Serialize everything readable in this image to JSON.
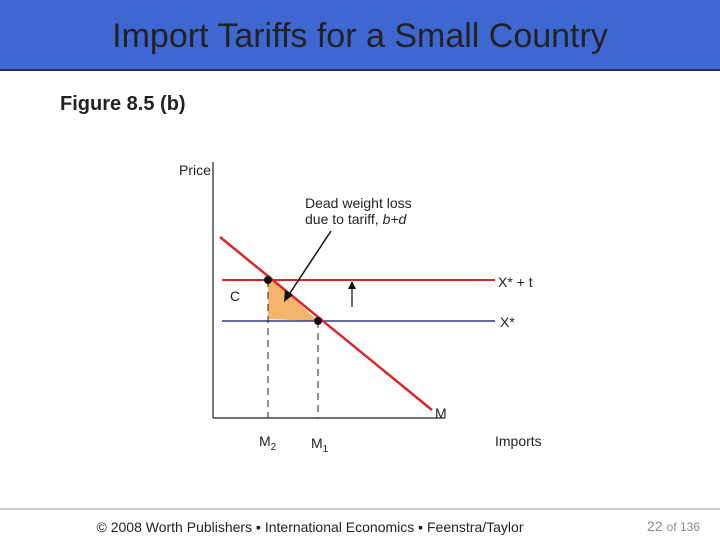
{
  "header": {
    "title": "Import Tariffs for a Small Country"
  },
  "figure": {
    "label": "Figure 8.5 (b)"
  },
  "diagram": {
    "y_axis_label": "Price",
    "x_axis_label": "Imports",
    "annotation": {
      "line1": "Dead weight loss",
      "line2_prefix": "due to tariff, ",
      "line2_italic": "b+d"
    },
    "lines": {
      "tariff_price": "X* + t",
      "world_price": "X*",
      "demand": "M"
    },
    "point_label": "C",
    "quantities": [
      {
        "label": "M",
        "sub": "2"
      },
      {
        "label": "M",
        "sub": "1"
      }
    ]
  },
  "footer": {
    "credit": "© 2008 Worth Publishers ▪ International Economics ▪ Feenstra/Taylor",
    "page_current": "22",
    "page_rest": "of 136"
  }
}
